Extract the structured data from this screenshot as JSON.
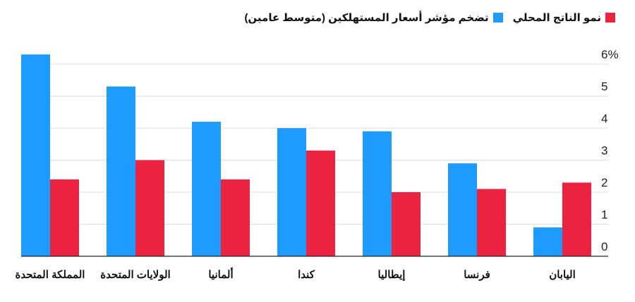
{
  "chart_data": {
    "type": "bar",
    "categories": [
      "المملكة المتحدة",
      "الولايات المتحدة",
      "ألمانيا",
      "كندا",
      "إيطاليا",
      "فرنسا",
      "اليابان"
    ],
    "series": [
      {
        "name": "تضخم مؤشر أسعار المستهلكين (متوسط عامين)",
        "color": "#1e9bff",
        "values": [
          6.3,
          5.3,
          4.2,
          4.0,
          3.9,
          2.9,
          0.9
        ]
      },
      {
        "name": "نمو الناتج المحلي",
        "color": "#eb2340",
        "values": [
          2.4,
          3.0,
          2.4,
          3.3,
          2.0,
          2.1,
          2.3
        ]
      }
    ],
    "y_ticks": [
      "0",
      "1",
      "2",
      "3",
      "4",
      "5",
      "6%"
    ],
    "ylim": [
      0,
      6.5
    ],
    "grid": true,
    "legend_position": "top-right",
    "title": "",
    "xlabel": "",
    "ylabel": ""
  }
}
